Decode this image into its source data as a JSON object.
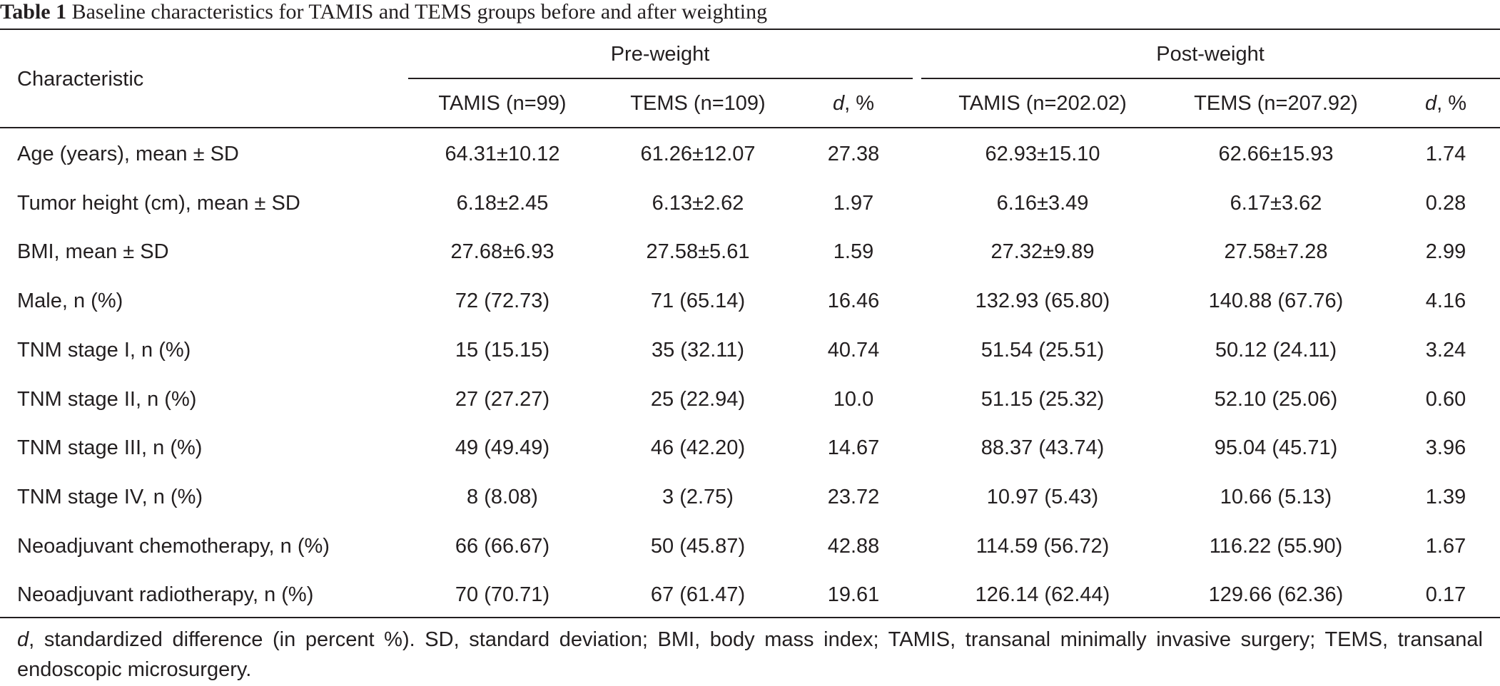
{
  "caption": {
    "label": "Table 1",
    "text": "Baseline characteristics for TAMIS and TEMS groups before and after weighting"
  },
  "header": {
    "characteristic": "Characteristic",
    "pre_weight": "Pre-weight",
    "post_weight": "Post-weight",
    "columns": [
      "TAMIS (n=99)",
      "TEMS (n=109)",
      ", %",
      "TAMIS (n=202.02)",
      "TEMS (n=207.92)",
      ", %"
    ],
    "d_symbol": "d"
  },
  "rows": [
    {
      "label": "Age (years), mean ± SD",
      "values": [
        "64.31±10.12",
        "61.26±12.07",
        "27.38",
        "62.93±15.10",
        "62.66±15.93",
        "1.74"
      ]
    },
    {
      "label": "Tumor height (cm), mean ± SD",
      "values": [
        "6.18±2.45",
        "6.13±2.62",
        "1.97",
        "6.16±3.49",
        "6.17±3.62",
        "0.28"
      ]
    },
    {
      "label": "BMI, mean ± SD",
      "values": [
        "27.68±6.93",
        "27.58±5.61",
        "1.59",
        "27.32±9.89",
        "27.58±7.28",
        "2.99"
      ]
    },
    {
      "label": "Male, n (%)",
      "values": [
        "72 (72.73)",
        "71 (65.14)",
        "16.46",
        "132.93 (65.80)",
        "140.88 (67.76)",
        "4.16"
      ]
    },
    {
      "label": "TNM stage I, n (%)",
      "values": [
        "15 (15.15)",
        "35 (32.11)",
        "40.74",
        "51.54 (25.51)",
        "50.12 (24.11)",
        "3.24"
      ]
    },
    {
      "label": "TNM stage II, n (%)",
      "values": [
        "27 (27.27)",
        "25 (22.94)",
        "10.0",
        "51.15 (25.32)",
        "52.10 (25.06)",
        "0.60"
      ]
    },
    {
      "label": "TNM stage III, n (%)",
      "values": [
        "49 (49.49)",
        "46 (42.20)",
        "14.67",
        "88.37 (43.74)",
        "95.04 (45.71)",
        "3.96"
      ]
    },
    {
      "label": "TNM stage IV, n (%)",
      "values": [
        "8 (8.08)",
        "3 (2.75)",
        "23.72",
        "10.97 (5.43)",
        "10.66 (5.13)",
        "1.39"
      ]
    },
    {
      "label": "Neoadjuvant chemotherapy, n (%)",
      "values": [
        "66 (66.67)",
        "50 (45.87)",
        "42.88",
        "114.59 (56.72)",
        "116.22 (55.90)",
        "1.67"
      ]
    },
    {
      "label": "Neoadjuvant radiotherapy, n (%)",
      "values": [
        "70 (70.71)",
        "67 (61.47)",
        "19.61",
        "126.14 (62.44)",
        "129.66 (62.36)",
        "0.17"
      ]
    }
  ],
  "footnote": {
    "d_symbol": "d",
    "text": ", standardized difference (in percent %). SD, standard deviation; BMI, body mass index; TAMIS, transanal minimally invasive surgery; TEMS, transanal endoscopic microsurgery."
  }
}
